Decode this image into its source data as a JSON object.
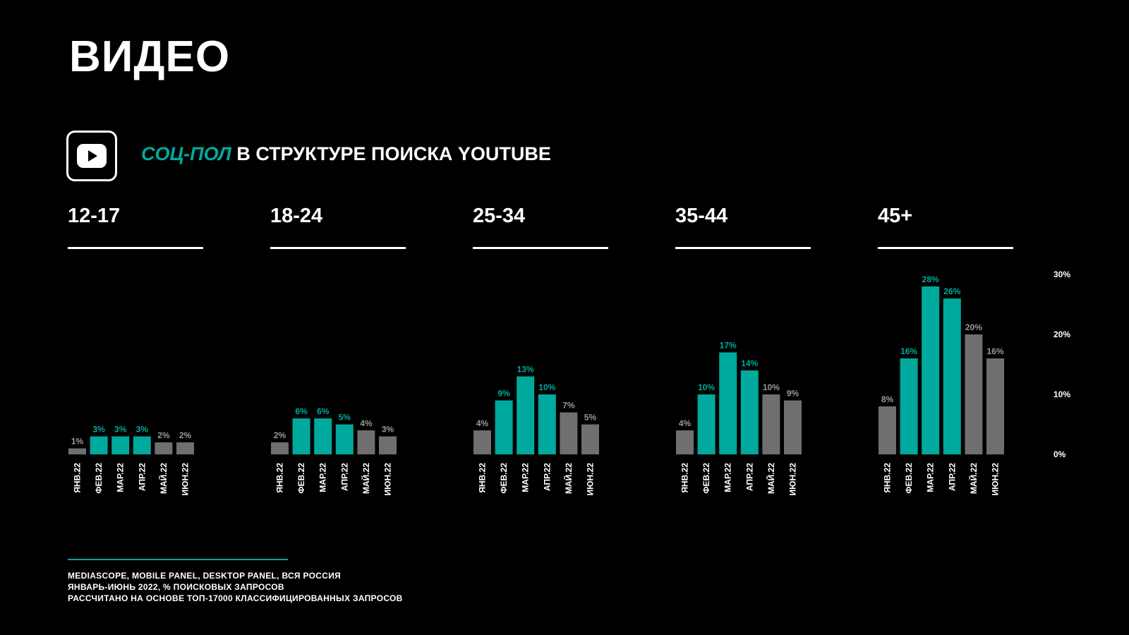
{
  "page": {
    "title": "ВИДЕО",
    "subtitle_accent": "СОЦ-ПОЛ",
    "subtitle_rest": "В СТРУКТУРЕ ПОИСКА YOUTUBE",
    "icon": "youtube-play-icon"
  },
  "colors": {
    "background": "#000000",
    "accent": "#00a99d",
    "gray": "#6f6f6f",
    "text": "#ffffff",
    "axis_text": "#ffffff"
  },
  "chart_data": {
    "type": "bar",
    "categories": [
      "ЯНВ.22",
      "ФЕВ.22",
      "МАР.22",
      "АПР.22",
      "МАЙ.22",
      "ИЮН.22"
    ],
    "highlight": [
      false,
      true,
      true,
      true,
      false,
      false
    ],
    "ylim": [
      0,
      30
    ],
    "yticks": [
      "0%",
      "10%",
      "20%",
      "30%"
    ],
    "ytick_values": [
      0,
      10,
      20,
      30
    ],
    "grid": false,
    "series": [
      {
        "name": "12-17",
        "values": [
          1,
          3,
          3,
          3,
          2,
          2
        ],
        "labels": [
          "1%",
          "3%",
          "3%",
          "3%",
          "2%",
          "2%"
        ]
      },
      {
        "name": "18-24",
        "values": [
          2,
          6,
          6,
          5,
          4,
          3
        ],
        "labels": [
          "2%",
          "6%",
          "6%",
          "5%",
          "4%",
          "3%"
        ]
      },
      {
        "name": "25-34",
        "values": [
          4,
          9,
          13,
          10,
          7,
          5
        ],
        "labels": [
          "4%",
          "9%",
          "13%",
          "10%",
          "7%",
          "5%"
        ]
      },
      {
        "name": "35-44",
        "values": [
          4,
          10,
          17,
          14,
          10,
          9
        ],
        "labels": [
          "4%",
          "10%",
          "17%",
          "14%",
          "10%",
          "9%"
        ]
      },
      {
        "name": "45+",
        "values": [
          8,
          16,
          28,
          26,
          20,
          16
        ],
        "labels": [
          "8%",
          "16%",
          "28%",
          "26%",
          "20%",
          "16%"
        ]
      }
    ]
  },
  "sources": {
    "line1": "MEDIASCOPE, MOBILE PANEL, DESKTOP PANEL, ВСЯ РОССИЯ",
    "line2": "ЯНВАРЬ-ИЮНЬ 2022, % ПОИСКОВЫХ ЗАПРОСОВ",
    "line3": "РАССЧИТАНО НА ОСНОВЕ ТОП-17000 КЛАССИФИЦИРОВАННЫХ ЗАПРОСОВ"
  }
}
